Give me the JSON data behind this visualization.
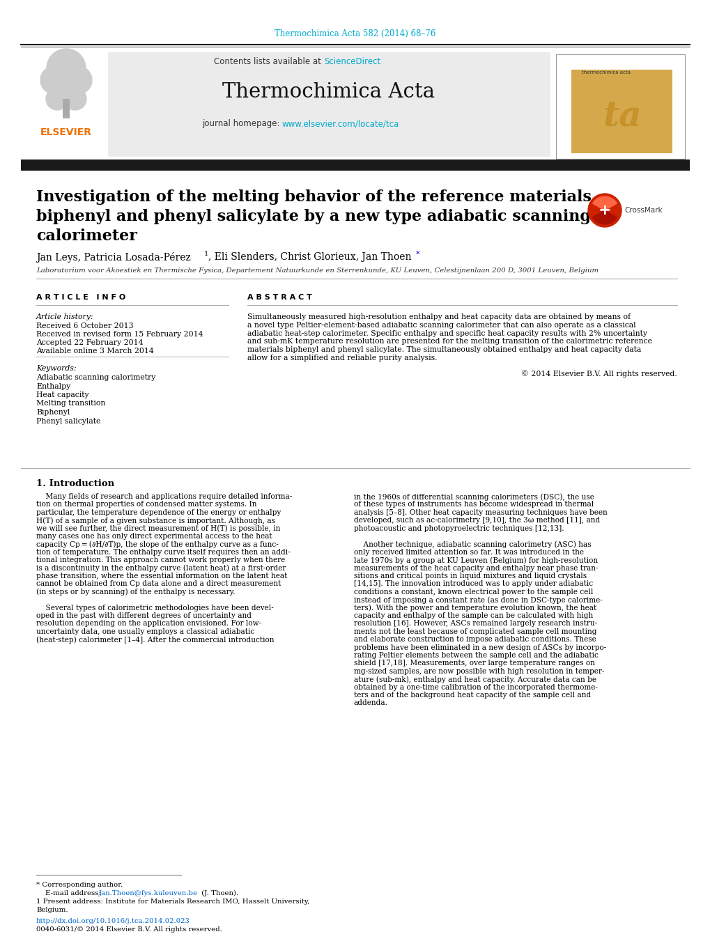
{
  "page_width": 10.2,
  "page_height": 13.51,
  "bg_color": "#ffffff",
  "top_journal_ref": "Thermochimica Acta 582 (2014) 68–76",
  "top_journal_ref_color": "#00aacc",
  "header_bg": "#e8e8e8",
  "header_text1": "Contents lists available at ",
  "header_sciencedirect": "ScienceDirect",
  "header_sciencedirect_color": "#00aacc",
  "journal_name": "Thermochimica Acta",
  "journal_homepage_text": "journal homepage: ",
  "journal_homepage_url": "www.elsevier.com/locate/tca",
  "journal_homepage_color": "#00aacc",
  "paper_title_line1": "Investigation of the melting behavior of the reference materials",
  "paper_title_line2": "biphenyl and phenyl salicylate by a new type adiabatic scanning",
  "paper_title_line3": "calorimeter",
  "authors_part1": "Jan Leys, Patricia Losada-Pérez ",
  "authors_sup": "1",
  "authors_part2": ", Eli Slenders, Christ Glorieux, Jan Thoen",
  "authors_star": "*",
  "affiliation": "Laboratorium voor Akoestiek en Thermische Fysica, Departement Natuurkunde en Sterrenkunde, KU Leuven, Celestijnenlaan 200 D, 3001 Leuven, Belgium",
  "section_article_info": "A R T I C L E   I N F O",
  "section_abstract": "A B S T R A C T",
  "article_history_label": "Article history:",
  "received": "Received 6 October 2013",
  "received_revised": "Received in revised form 15 February 2014",
  "accepted": "Accepted 22 February 2014",
  "available_online": "Available online 3 March 2014",
  "keywords_label": "Keywords:",
  "keywords": [
    "Adiabatic scanning calorimetry",
    "Enthalpy",
    "Heat capacity",
    "Melting transition",
    "Biphenyl",
    "Phenyl salicylate"
  ],
  "abstract_text": "Simultaneously measured high-resolution enthalpy and heat capacity data are obtained by means of a novel type Peltier-element-based adiabatic scanning calorimeter that can also operate as a classical adiabatic heat-step calorimeter. Specific enthalpy and specific heat capacity results with 2% uncertainty and sub-mK temperature resolution are presented for the melting transition of the calorimetric reference materials biphenyl and phenyl salicylate. The simultaneously obtained enthalpy and heat capacity data allow for a simplified and reliable purity analysis.",
  "copyright": "© 2014 Elsevier B.V. All rights reserved.",
  "intro_title": "1. Introduction",
  "intro_col1_lines": [
    "    Many fields of research and applications require detailed informa-",
    "tion on thermal properties of condensed matter systems. In",
    "particular, the temperature dependence of the energy or enthalpy",
    "H(T) of a sample of a given substance is important. Although, as",
    "we will see further, the direct measurement of H(T) is possible, in",
    "many cases one has only direct experimental access to the heat",
    "capacity Cp = (∂H/∂T)p, the slope of the enthalpy curve as a func-",
    "tion of temperature. The enthalpy curve itself requires then an addi-",
    "tional integration. This approach cannot work properly when there",
    "is a discontinuity in the enthalpy curve (latent heat) at a first-order",
    "phase transition, where the essential information on the latent heat",
    "cannot be obtained from Cp data alone and a direct measurement",
    "(in steps or by scanning) of the enthalpy is necessary.",
    "",
    "    Several types of calorimetric methodologies have been devel-",
    "oped in the past with different degrees of uncertainty and",
    "resolution depending on the application envisioned. For low-",
    "uncertainty data, one usually employs a classical adiabatic",
    "(heat-step) calorimeter [1–4]. After the commercial introduction"
  ],
  "intro_col2_lines": [
    "in the 1960s of differential scanning calorimeters (DSC), the use",
    "of these types of instruments has become widespread in thermal",
    "analysis [5–8]. Other heat capacity measuring techniques have been",
    "developed, such as ac-calorimetry [9,10], the 3ω method [11], and",
    "photoacoustic and photopyroelectric techniques [12,13].",
    "",
    "    Another technique, adiabatic scanning calorimetry (ASC) has",
    "only received limited attention so far. It was introduced in the",
    "late 1970s by a group at KU Leuven (Belgium) for high-resolution",
    "measurements of the heat capacity and enthalpy near phase tran-",
    "sitions and critical points in liquid mixtures and liquid crystals",
    "[14,15]. The innovation introduced was to apply under adiabatic",
    "conditions a constant, known electrical power to the sample cell",
    "instead of imposing a constant rate (as done in DSC-type calorime-",
    "ters). With the power and temperature evolution known, the heat",
    "capacity and enthalpy of the sample can be calculated with high",
    "resolution [16]. However, ASCs remained largely research instru-",
    "ments not the least because of complicated sample cell mounting",
    "and elaborate construction to impose adiabatic conditions. These",
    "problems have been eliminated in a new design of ASCs by incorpo-",
    "rating Peltier elements between the sample cell and the adiabatic",
    "shield [17,18]. Measurements, over large temperature ranges on",
    "mg-sized samples, are now possible with high resolution in temper-",
    "ature (sub-mk), enthalpy and heat capacity. Accurate data can be",
    "obtained by a one-time calibration of the incorporated thermome-",
    "ters and of the background heat capacity of the sample cell and",
    "addenda."
  ],
  "footnote_corresponding": "* Corresponding author.",
  "footnote_email_label": "    E-mail address: ",
  "footnote_email_link": "Jan.Thoen@fys.kuleuven.be",
  "footnote_email_suffix": " (J. Thoen).",
  "footnote_email_color": "#0066cc",
  "footnote_1": "1 Present address: Institute for Materials Research IMO, Hasselt University,",
  "footnote_1b": "Belgium.",
  "doi_text": "http://dx.doi.org/10.1016/j.tca.2014.02.023",
  "doi_color": "#0066cc",
  "issn_text": "0040-6031/© 2014 Elsevier B.V. All rights reserved.",
  "elsevier_color": "#f07000",
  "dark_bar_color": "#1a1a1a",
  "crossmark_text": "CrossMark"
}
